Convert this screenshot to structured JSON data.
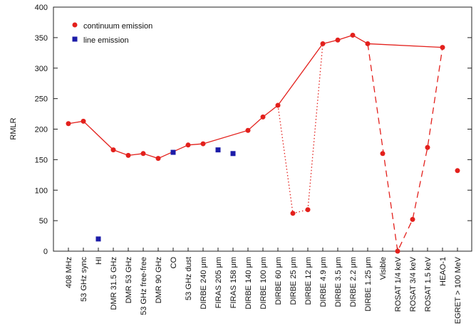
{
  "chart_data": {
    "type": "scatter",
    "y_label": "RMLR",
    "categories": [
      "408 MHz",
      "53 GHz sync",
      "HI",
      "DMR 31.5 GHz",
      "DMR 53 GHz",
      "53 GHz free-free",
      "DMR 90 GHz",
      "CO",
      "53 GHz dust",
      "DIRBE 240 μm",
      "FIRAS 205 μm",
      "FIRAS 158 μm",
      "DIRBE 140 μm",
      "DIRBE 100 μm",
      "DIRBE 60 μm",
      "DIRBE 25 μm",
      "DIRBE 12 μm",
      "DIRBE 4.9 μm",
      "DIRBE 3.5 μm",
      "DIRBE 2.2 μm",
      "DIRBE 1.25 μm",
      "Visible",
      "ROSAT 1/4 keV",
      "ROSAT 3/4 keV",
      "ROSAT 1.5 keV",
      "HEAO-1",
      "EGRET > 100 MeV"
    ],
    "series": [
      {
        "name": "continuum emission",
        "color": "#e3201c",
        "marker": "circle",
        "values": [
          209,
          213,
          null,
          166,
          157,
          160,
          152,
          null,
          174,
          176,
          null,
          null,
          198,
          220,
          239,
          62,
          68,
          340,
          346,
          354,
          340,
          160,
          0,
          52,
          170,
          334,
          132
        ]
      },
      {
        "name": "line emission",
        "color": "#1c1ca8",
        "marker": "square",
        "values": [
          null,
          null,
          20,
          null,
          null,
          null,
          null,
          162,
          null,
          null,
          166,
          160,
          null,
          null,
          null,
          null,
          null,
          null,
          null,
          null,
          null,
          null,
          null,
          null,
          null,
          null,
          null
        ]
      }
    ],
    "ylim": [
      0,
      400
    ],
    "yticks": [
      0,
      50,
      100,
      150,
      200,
      250,
      300,
      350,
      400
    ],
    "legend": "upper left"
  }
}
